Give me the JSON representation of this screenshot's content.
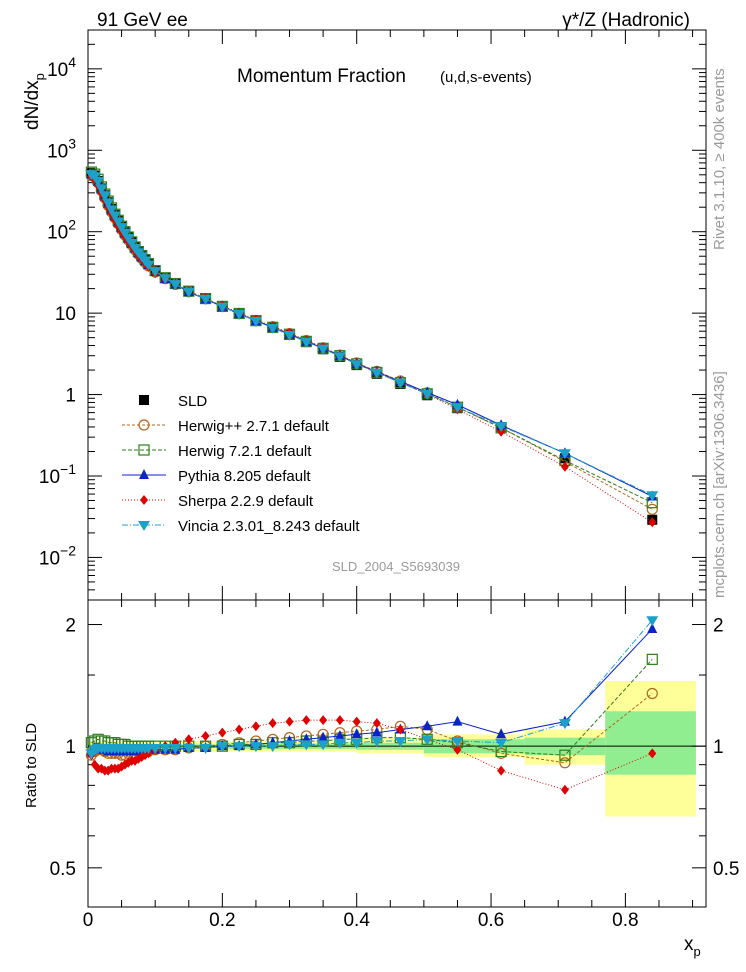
{
  "header": {
    "left": "91 GeV ee",
    "right": "γ*/Z (Hadronic)"
  },
  "side_text": {
    "top": "Rivet 3.1.10, ≥ 400k events",
    "bottom": "mcplots.cern.ch [arXiv:1306.3436]"
  },
  "chart_data": {
    "type": "line",
    "title": "Momentum Fraction",
    "subtitle": "(u,d,s-events)",
    "watermark": "SLD_2004_S5693039",
    "xlabel": "x",
    "xlabel_sub": "p",
    "ylabel": "dN/dx",
    "ylabel_sub": "p",
    "ratio_ylabel": "Ratio to SLD",
    "xlim": [
      0,
      0.92
    ],
    "ylim": [
      0.003,
      30000
    ],
    "ratio_ylim": [
      0.4,
      2.3
    ],
    "x_ticks": [
      "0",
      "0.2",
      "0.4",
      "0.6",
      "0.8"
    ],
    "y_ticks": [
      "10^-2",
      "10^-1",
      "1",
      "10",
      "10^2",
      "10^3",
      "10^4"
    ],
    "ratio_ticks": [
      "0.5",
      "1",
      "2"
    ],
    "x": [
      0.005,
      0.01,
      0.015,
      0.02,
      0.025,
      0.03,
      0.035,
      0.04,
      0.045,
      0.05,
      0.055,
      0.06,
      0.065,
      0.07,
      0.075,
      0.08,
      0.085,
      0.09,
      0.1,
      0.115,
      0.13,
      0.15,
      0.175,
      0.2,
      0.225,
      0.25,
      0.275,
      0.3,
      0.325,
      0.35,
      0.375,
      0.4,
      0.43,
      0.465,
      0.505,
      0.55,
      0.615,
      0.71,
      0.84
    ],
    "series": [
      {
        "name": "SLD",
        "values": [
          520,
          490,
          420,
          340,
          280,
          230,
          190,
          160,
          135,
          115,
          98,
          85,
          74,
          64,
          56,
          50,
          45,
          40,
          33,
          27,
          23,
          18.5,
          15.0,
          12.0,
          9.8,
          8.0,
          6.6,
          5.4,
          4.4,
          3.6,
          2.9,
          2.3,
          1.8,
          1.35,
          0.98,
          0.68,
          0.4,
          0.165,
          0.029
        ],
        "ratio": [
          0.95,
          1.0,
          1.0,
          1.0,
          1.0,
          1.0,
          1.0,
          1.0,
          1.0,
          1.0,
          1.0,
          1.0,
          1.0,
          1.0,
          1.0,
          1.0,
          1.0,
          1.0,
          1.0,
          1.0,
          1.0,
          1.0,
          1.0,
          1.0,
          1.0,
          1.0,
          1.0,
          1.0,
          1.0,
          1.0,
          1.0,
          1.0,
          1.0,
          1.0,
          1.0,
          1.0,
          1.0,
          1.0,
          1.0
        ]
      },
      {
        "name": "Herwig++ 2.7.1 default",
        "values": [
          490,
          470,
          400,
          320,
          260,
          210,
          175,
          148,
          125,
          106,
          91,
          79,
          69,
          60,
          53,
          47,
          42,
          38,
          32,
          26.5,
          22.5,
          18.3,
          15.0,
          12.1,
          9.9,
          8.1,
          6.8,
          5.6,
          4.6,
          3.75,
          3.05,
          2.44,
          1.93,
          1.47,
          1.05,
          0.7,
          0.39,
          0.15,
          0.039
        ],
        "ratio": [
          0.95,
          0.97,
          0.98,
          0.98,
          0.97,
          0.96,
          0.96,
          0.96,
          0.96,
          0.95,
          0.95,
          0.96,
          0.96,
          0.96,
          0.97,
          0.97,
          0.97,
          0.97,
          0.98,
          0.98,
          0.98,
          0.99,
          1.0,
          1.01,
          1.02,
          1.03,
          1.04,
          1.05,
          1.06,
          1.07,
          1.08,
          1.09,
          1.1,
          1.12,
          1.1,
          1.03,
          0.96,
          0.91,
          1.35
        ]
      },
      {
        "name": "Herwig 7.2.1 default",
        "values": [
          540,
          510,
          440,
          355,
          290,
          238,
          196,
          164,
          138,
          117,
          100,
          86,
          75,
          65,
          57,
          51,
          45.5,
          40.5,
          33.3,
          27.2,
          23.1,
          18.6,
          15.1,
          12.1,
          9.9,
          8.1,
          6.7,
          5.5,
          4.5,
          3.7,
          3.0,
          2.38,
          1.87,
          1.4,
          1.02,
          0.7,
          0.39,
          0.155,
          0.047
        ],
        "ratio": [
          1.02,
          1.03,
          1.04,
          1.03,
          1.03,
          1.02,
          1.02,
          1.02,
          1.01,
          1.01,
          1.01,
          1.0,
          1.0,
          1.0,
          1.0,
          1.0,
          1.0,
          1.0,
          1.0,
          1.0,
          1.0,
          1.0,
          1.0,
          1.0,
          1.01,
          1.01,
          1.02,
          1.02,
          1.03,
          1.03,
          1.04,
          1.04,
          1.05,
          1.05,
          1.04,
          1.02,
          0.97,
          0.95,
          1.64
        ]
      },
      {
        "name": "Pythia 8.205 default",
        "values": [
          500,
          480,
          410,
          330,
          270,
          220,
          182,
          153,
          129,
          110,
          94,
          82,
          71,
          62,
          54,
          48,
          43,
          39,
          32,
          26.2,
          22.5,
          18.2,
          14.8,
          12.0,
          9.8,
          8.0,
          6.7,
          5.5,
          4.5,
          3.7,
          3.0,
          2.4,
          1.9,
          1.45,
          1.06,
          0.75,
          0.42,
          0.19,
          0.056
        ],
        "ratio": [
          0.97,
          0.99,
          0.99,
          0.98,
          0.98,
          0.97,
          0.97,
          0.97,
          0.97,
          0.97,
          0.97,
          0.97,
          0.97,
          0.97,
          0.97,
          0.97,
          0.97,
          0.98,
          0.98,
          0.98,
          0.98,
          0.99,
          0.99,
          1.0,
          1.0,
          1.01,
          1.02,
          1.03,
          1.04,
          1.05,
          1.06,
          1.07,
          1.08,
          1.1,
          1.12,
          1.15,
          1.07,
          1.15,
          1.95
        ]
      },
      {
        "name": "Sherpa 2.2.9 default",
        "values": [
          480,
          440,
          370,
          300,
          245,
          200,
          167,
          140,
          118,
          101,
          87,
          76,
          67,
          58,
          51,
          46,
          41,
          37,
          31,
          26,
          22.8,
          18.5,
          15.1,
          12.3,
          10.1,
          8.3,
          6.9,
          5.7,
          4.65,
          3.8,
          3.05,
          2.42,
          1.89,
          1.42,
          1.01,
          0.66,
          0.35,
          0.13,
          0.027
        ],
        "ratio": [
          0.95,
          0.9,
          0.88,
          0.88,
          0.87,
          0.87,
          0.88,
          0.88,
          0.88,
          0.89,
          0.9,
          0.91,
          0.92,
          0.92,
          0.93,
          0.94,
          0.95,
          0.96,
          0.98,
          1.0,
          1.02,
          1.04,
          1.06,
          1.08,
          1.1,
          1.12,
          1.14,
          1.15,
          1.16,
          1.16,
          1.16,
          1.15,
          1.14,
          1.1,
          1.04,
          0.98,
          0.87,
          0.78,
          0.96
        ]
      },
      {
        "name": "Vincia 2.3.01_8.243 default",
        "values": [
          510,
          480,
          420,
          340,
          280,
          228,
          188,
          158,
          134,
          114,
          97,
          84,
          73,
          63,
          56,
          50,
          44.5,
          39.5,
          32.8,
          26.8,
          22.7,
          18.3,
          14.9,
          12.0,
          9.8,
          8.0,
          6.6,
          5.4,
          4.45,
          3.65,
          2.95,
          2.36,
          1.86,
          1.4,
          1.02,
          0.7,
          0.41,
          0.19,
          0.058
        ],
        "ratio": [
          0.96,
          0.98,
          0.99,
          0.99,
          0.99,
          0.99,
          0.99,
          0.99,
          0.99,
          0.99,
          0.99,
          0.99,
          0.99,
          0.99,
          0.99,
          0.99,
          0.99,
          0.99,
          0.99,
          0.99,
          0.99,
          0.99,
          0.99,
          1.0,
          1.0,
          1.0,
          1.0,
          1.01,
          1.01,
          1.01,
          1.02,
          1.02,
          1.03,
          1.03,
          1.04,
          1.03,
          1.02,
          1.14,
          2.05
        ]
      }
    ],
    "uncertainty_bands": {
      "x_edges": [
        0,
        0.2,
        0.4,
        0.5,
        0.65,
        0.77,
        0.905
      ],
      "stat_lo": [
        0.99,
        0.985,
        0.98,
        0.96,
        0.95,
        0.85
      ],
      "stat_hi": [
        1.01,
        1.015,
        1.02,
        1.04,
        1.05,
        1.22
      ],
      "total_lo": [
        0.97,
        0.97,
        0.96,
        0.94,
        0.9,
        0.67
      ],
      "total_hi": [
        1.03,
        1.03,
        1.05,
        1.07,
        1.1,
        1.45
      ]
    },
    "colors": {
      "SLD": "#000000",
      "Herwig++ 2.7.1 default": "#b5651d",
      "Herwig 7.2.1 default": "#2e7d1a",
      "Pythia 8.205 default": "#0b24c8",
      "Sherpa 2.2.9 default": "#e00000",
      "Vincia 2.3.01_8.243 default": "#1ca1c8",
      "stat_band": "#90ee90",
      "total_band": "#ffff99"
    },
    "markers": {
      "SLD": "square-filled",
      "Herwig++ 2.7.1 default": "circle-open",
      "Herwig 7.2.1 default": "square-open",
      "Pythia 8.205 default": "triangle-up",
      "Sherpa 2.2.9 default": "diamond",
      "Vincia 2.3.01_8.243 default": "triangle-down"
    },
    "legend_position": "lower-left"
  }
}
